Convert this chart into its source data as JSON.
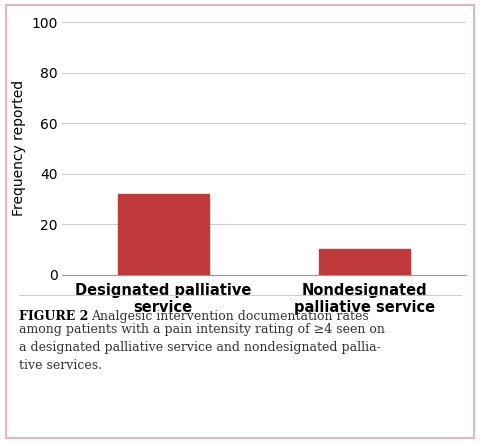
{
  "categories": [
    "Designated palliative\nservice",
    "Nondesignated\npalliative service"
  ],
  "values": [
    32,
    10
  ],
  "bar_color": "#c0393b",
  "ylabel": "Frequency reported",
  "ylim": [
    0,
    100
  ],
  "yticks": [
    0,
    20,
    40,
    60,
    80,
    100
  ],
  "grid_color": "#cccccc",
  "background_color": "#ffffff",
  "border_color": "#e0b8b8",
  "caption_bold": "FIGURE 2",
  "caption_rest": " Analgesic intervention documentation rates among patients with a pain intensity rating of ≥4 seen on a designated palliative service and nondesignated pallia-tive services.",
  "bar_width": 0.45,
  "ylabel_fontsize": 10,
  "caption_fontsize": 9.0,
  "xticklabel_fontsize": 10.5,
  "ytick_fontsize": 10
}
